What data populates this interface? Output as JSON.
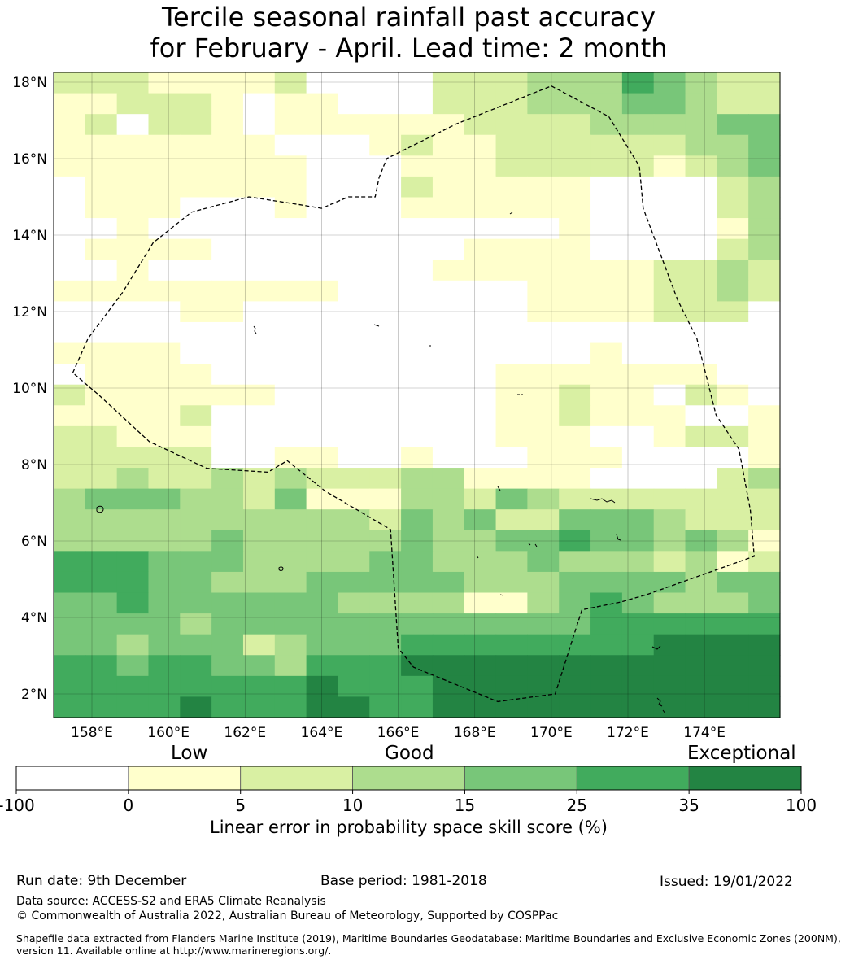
{
  "title": {
    "line1": "Tercile seasonal rainfall past accuracy",
    "line2": "for February - April. Lead time: 2 month"
  },
  "map": {
    "lon_range": [
      157,
      176
    ],
    "lat_range": [
      1.4,
      18.3
    ],
    "lon_ticks": [
      "158°E",
      "160°E",
      "162°E",
      "164°E",
      "166°E",
      "168°E",
      "170°E",
      "172°E",
      "174°E"
    ],
    "lat_ticks": [
      "18°N",
      "16°N",
      "14°N",
      "12°N",
      "10°N",
      "8°N",
      "6°N",
      "4°N",
      "2°N"
    ],
    "grid_cols": 23,
    "grid_rows": 31,
    "class_colors": [
      "#ffffff",
      "#ffffcc",
      "#d9f0a3",
      "#addd8e",
      "#78c679",
      "#41ab5d",
      "#238443"
    ],
    "skill_grid": [
      "22211112000022233354322",
      "11222101100022233344322",
      "12022101111112222333344",
      "11111110001211222222334",
      "11111111000111222221234",
      "01111111000211111000023",
      "01110001000111111000023",
      "00100000000000001000013",
      "01111000000001111000023",
      "00100000000011111112232",
      "11111111100000011112232",
      "00001100000000011112220",
      "00000000000000000000000",
      "11110000000000000100000",
      "01111000000000111111100",
      "21111110000000112110210",
      "11112000000000112111001",
      "22111000000000111001221",
      "22222001100100011100001",
      "22322323222331111000023",
      "34443324111332432222222",
      "33333333332434224443222",
      "33333433333433445443431",
      "55544433334433343332312",
      "55544333444443334444344",
      "44544444433331134543334",
      "44443444444444444555555",
      "44344423444555555556666",
      "55455443555666666666666",
      "55555555655566666666666",
      "55556555665566666666666"
    ],
    "eez_outline": [
      [
        170.0,
        17.9
      ],
      [
        171.5,
        17.1
      ],
      [
        172.3,
        15.8
      ],
      [
        172.4,
        14.7
      ],
      [
        173.3,
        12.3
      ],
      [
        173.8,
        11.3
      ],
      [
        174.3,
        9.3
      ],
      [
        174.9,
        8.4
      ],
      [
        175.2,
        6.8
      ],
      [
        175.3,
        5.6
      ],
      [
        173.9,
        5.1
      ],
      [
        172.5,
        4.6
      ],
      [
        171.8,
        4.4
      ],
      [
        170.8,
        4.2
      ],
      [
        170.1,
        2.0
      ],
      [
        168.6,
        1.8
      ],
      [
        166.4,
        2.7
      ],
      [
        166.0,
        3.2
      ],
      [
        165.8,
        6.3
      ],
      [
        164.1,
        7.3
      ],
      [
        163.1,
        8.1
      ],
      [
        162.6,
        7.8
      ],
      [
        161.0,
        7.9
      ],
      [
        159.5,
        8.6
      ],
      [
        158.2,
        9.8
      ],
      [
        157.5,
        10.4
      ],
      [
        157.9,
        11.3
      ],
      [
        158.8,
        12.5
      ],
      [
        159.6,
        13.8
      ],
      [
        160.6,
        14.6
      ],
      [
        162.1,
        15.0
      ],
      [
        163.4,
        14.8
      ],
      [
        164.0,
        14.7
      ],
      [
        164.7,
        15.0
      ],
      [
        165.4,
        15.0
      ],
      [
        165.5,
        15.5
      ],
      [
        165.7,
        16.0
      ],
      [
        167.5,
        16.9
      ],
      [
        170.0,
        17.9
      ]
    ]
  },
  "colorbar": {
    "words": [
      "Low",
      "Good",
      "Exceptional"
    ],
    "tick_labels": [
      "-100",
      "0",
      "5",
      "10",
      "15",
      "25",
      "35",
      "100"
    ],
    "colors": [
      "#ffffff",
      "#ffffcc",
      "#d9f0a3",
      "#addd8e",
      "#78c679",
      "#41ab5d",
      "#238443"
    ],
    "label": "Linear error in probability space skill score (%)"
  },
  "footer": {
    "run_date": "Run date: 9th December",
    "base_period": "Base period: 1981-2018",
    "issued": "Issued: 19/01/2022",
    "data_source": "Data source: ACCESS-S2 and ERA5 Climate Reanalysis",
    "copyright": "© Commonwealth of Australia 2022, Australian Bureau of Meteorology, Supported by COSPPac",
    "shapefile_line1": "Shapefile data extracted from Flanders Marine Institute (2019), Maritime Boundaries Geodatabase: Maritime Boundaries and Exclusive Economic Zones (200NM),",
    "shapefile_line2": "version 11. Available online at http://www.marineregions.org/."
  }
}
